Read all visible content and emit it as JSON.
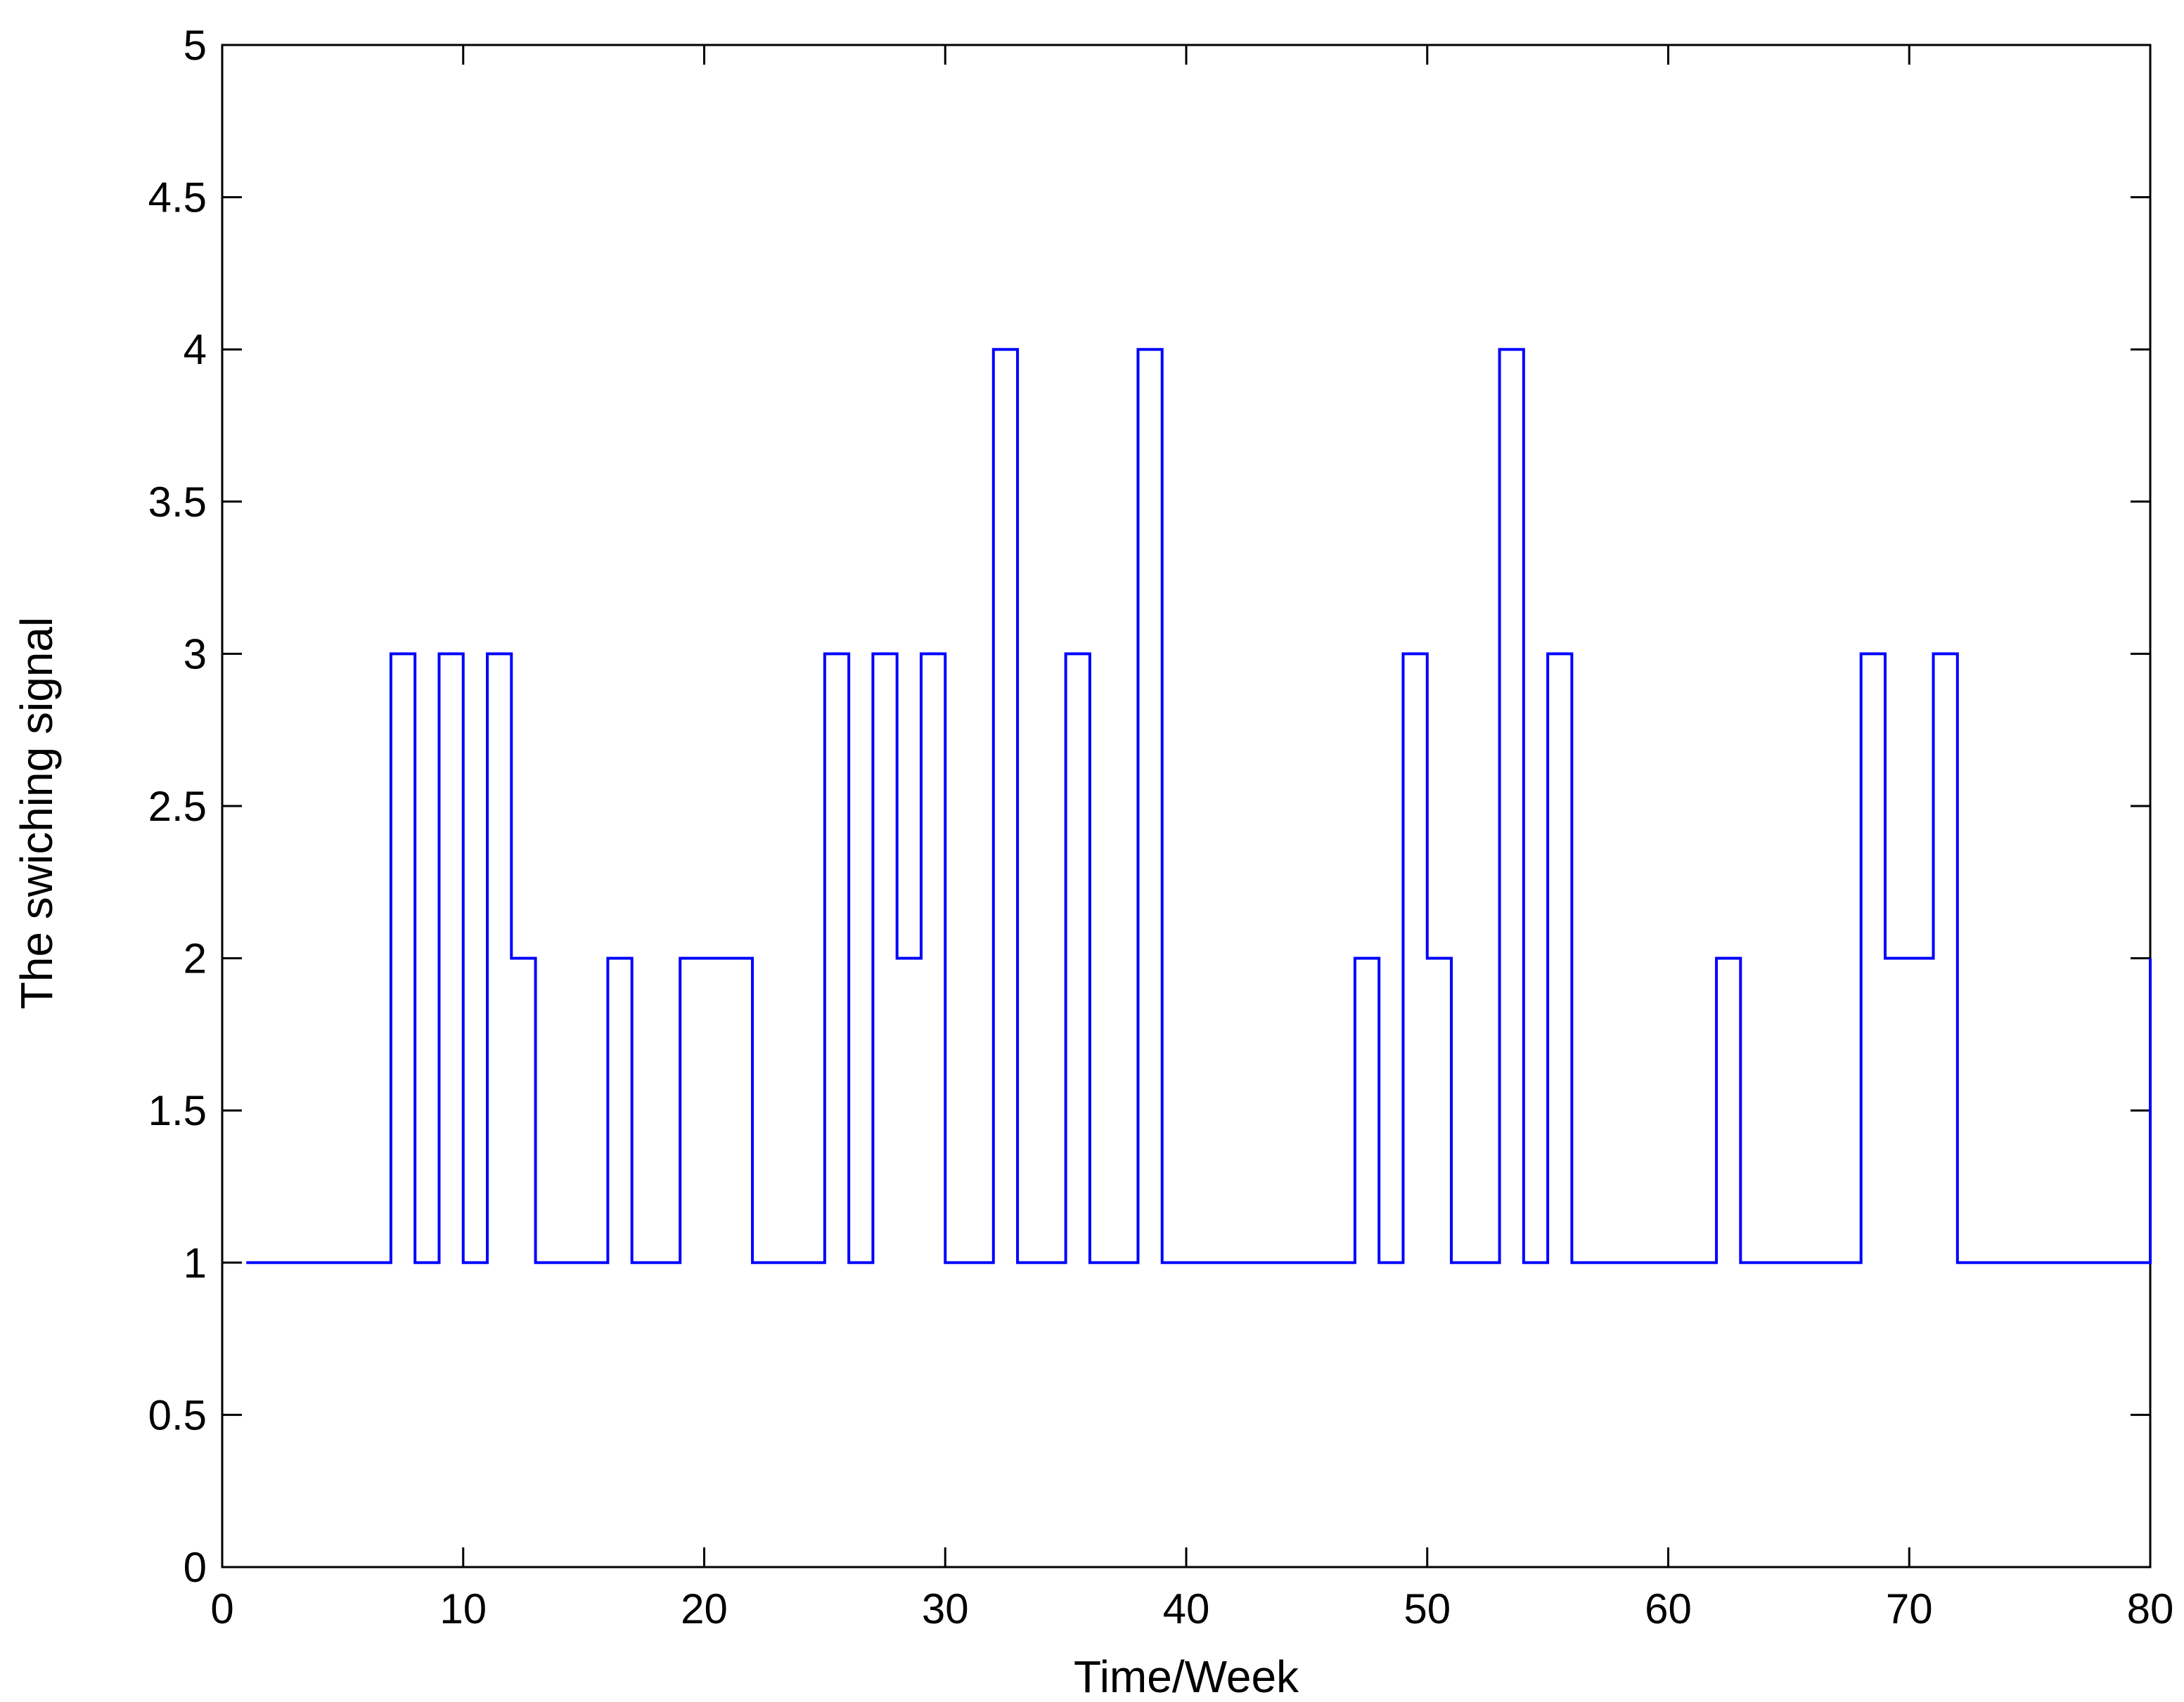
{
  "chart_data": {
    "type": "line",
    "title": "",
    "xlabel": "Time/Week",
    "ylabel": "The swiching signal",
    "xlim": [
      0,
      80
    ],
    "ylim": [
      0,
      5
    ],
    "xticks": [
      0,
      10,
      20,
      30,
      40,
      50,
      60,
      70,
      80
    ],
    "yticks": [
      0,
      0.5,
      1,
      1.5,
      2,
      2.5,
      3,
      3.5,
      4,
      4.5,
      5
    ],
    "xtick_labels": [
      "0",
      "10",
      "20",
      "30",
      "40",
      "50",
      "60",
      "70",
      "80"
    ],
    "ytick_labels": [
      "0",
      "0.5",
      "1",
      "1.5",
      "2",
      "2.5",
      "3",
      "3.5",
      "4",
      "4.5",
      "5"
    ],
    "grid": false,
    "legend": "none",
    "series": [
      {
        "step": "post",
        "color": "#0000ff",
        "x": [
          1,
          7,
          8,
          9,
          10,
          11,
          12,
          13,
          16,
          17,
          19,
          22,
          25,
          26,
          27,
          28,
          29,
          30,
          32,
          33,
          35,
          36,
          38,
          39,
          47,
          48,
          49,
          50,
          51,
          53,
          54,
          55,
          56,
          62,
          63,
          68,
          69,
          71,
          72,
          80
        ],
        "y": [
          1,
          3,
          1,
          3,
          1,
          3,
          2,
          1,
          2,
          1,
          2,
          1,
          3,
          1,
          3,
          2,
          3,
          1,
          4,
          1,
          3,
          1,
          4,
          1,
          2,
          1,
          3,
          2,
          1,
          4,
          1,
          3,
          1,
          2,
          1,
          3,
          2,
          3,
          1,
          2
        ]
      }
    ]
  }
}
